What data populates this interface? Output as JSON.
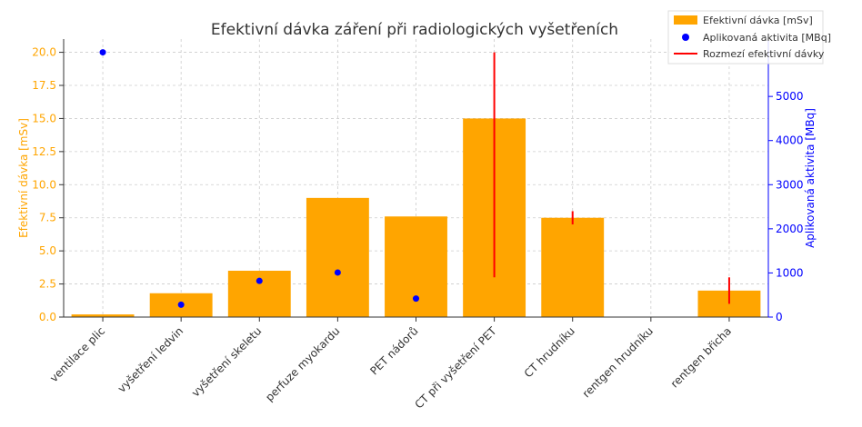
{
  "chart_data": {
    "type": "bar",
    "title": "Efektivní dávka záření při radiologických vyšetřeních",
    "xlabel": "",
    "ylabel": "Efektivní dávka [mSv]",
    "y2label": "Aplikovaná aktivita [MBq]",
    "categories": [
      "ventilace plic",
      "vyšetření ledvin",
      "vyšetření skeletu",
      "perfuze myokardu",
      "PET nádorů",
      "CT při vyšetření PET",
      "CT hrudníku",
      "rentgen hrudníku",
      "rentgen břicha"
    ],
    "ylim": [
      0,
      21
    ],
    "y2lim": [
      0,
      6300
    ],
    "yticks": [
      "0.0",
      "2.5",
      "5.0",
      "7.5",
      "10.0",
      "12.5",
      "15.0",
      "17.5",
      "20.0"
    ],
    "y2ticks": [
      "0",
      "1000",
      "2000",
      "3000",
      "4000",
      "5000"
    ],
    "grid": true,
    "legend_position": "top-right",
    "series": [
      {
        "name": "Efektivní dávka [mSv]",
        "kind": "bar",
        "color": "#FFA500",
        "values": [
          0.2,
          1.8,
          3.5,
          9.0,
          7.6,
          15.0,
          7.5,
          0.02,
          2.0
        ]
      },
      {
        "name": "Aplikovaná aktivita [MBq]",
        "kind": "scatter",
        "axis": "right",
        "color": "#0000FF",
        "values": [
          6000,
          280,
          820,
          1010,
          420,
          null,
          null,
          null,
          null
        ]
      },
      {
        "name": "Rozmezí efektivní dávky",
        "kind": "range",
        "color": "#FF0000",
        "values": [
          null,
          null,
          null,
          null,
          null,
          [
            3.0,
            20.0
          ],
          [
            7.0,
            8.0
          ],
          null,
          [
            1.0,
            3.0
          ]
        ]
      }
    ]
  }
}
